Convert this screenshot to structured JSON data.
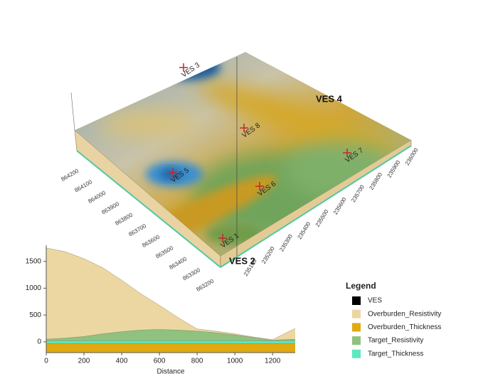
{
  "surface": {
    "points": [
      "VES 3",
      "VES 4",
      "VES 8",
      "VES 7",
      "VES 5",
      "VES 6",
      "VES 1",
      "VES 2"
    ],
    "northing_ticks": [
      "864200",
      "864100",
      "864000",
      "863900",
      "863800",
      "863700",
      "863600",
      "863500",
      "863400",
      "863300",
      "863200"
    ],
    "easting_ticks": [
      "235100",
      "235200",
      "235300",
      "235400",
      "235500",
      "235600",
      "235700",
      "235800",
      "235900",
      "236000"
    ]
  },
  "chart_data": {
    "type": "area",
    "x_label": "Distance",
    "x": [
      0,
      100,
      200,
      300,
      400,
      500,
      600,
      700,
      800,
      900,
      1000,
      1100,
      1200,
      1250,
      1320
    ],
    "series": [
      {
        "name": "Overburden_Resistivity",
        "color": "#ecd7a2",
        "values": [
          1750,
          1680,
          1550,
          1380,
          1150,
          900,
          680,
          450,
          240,
          200,
          150,
          90,
          40,
          130,
          250
        ]
      },
      {
        "name": "Target_Resistivity",
        "color": "#8fc27e",
        "values": [
          50,
          70,
          100,
          150,
          190,
          220,
          230,
          220,
          200,
          170,
          130,
          80,
          30,
          40,
          50
        ]
      },
      {
        "name": "Target_Thickness",
        "color": "#5de8c0",
        "values": [
          20,
          20,
          20,
          20,
          20,
          20,
          20,
          20,
          20,
          20,
          20,
          20,
          20,
          20,
          20
        ]
      },
      {
        "name": "Overburden_Thickness",
        "color": "#e0aa10",
        "values": [
          -30,
          -30,
          -30,
          -30,
          -30,
          -30,
          -30,
          -30,
          -30,
          -30,
          -30,
          -30,
          -30,
          -30,
          -30
        ]
      }
    ],
    "xlim": [
      0,
      1320
    ],
    "xticks": [
      0,
      200,
      400,
      600,
      800,
      1000,
      1200
    ],
    "ylim": [
      -200,
      1800
    ],
    "yticks": [
      0,
      500,
      1000,
      1500
    ]
  },
  "legend": {
    "title": "Legend",
    "items": [
      {
        "name": "VES",
        "color": "#000000"
      },
      {
        "name": "Overburden_Resistivity",
        "color": "#ecd7a2"
      },
      {
        "name": "Overburden_Thickness",
        "color": "#e0aa10"
      },
      {
        "name": "Target_Resistivity",
        "color": "#8fc27e"
      },
      {
        "name": "Target_Thickness",
        "color": "#5de8c0"
      }
    ]
  }
}
